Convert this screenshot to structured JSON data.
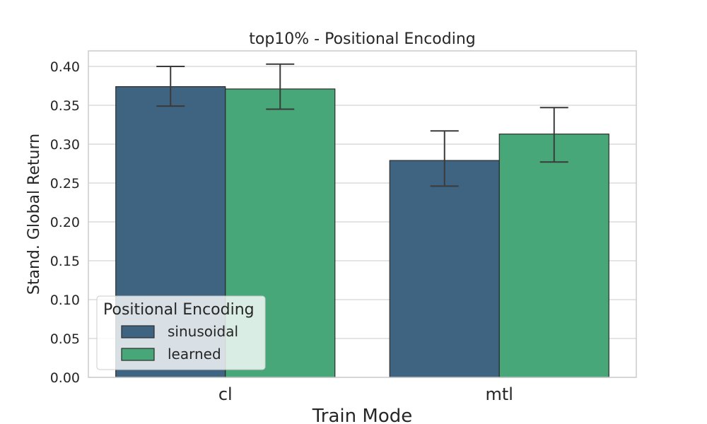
{
  "chart_data": {
    "type": "bar",
    "title": "top10% - Positional Encoding",
    "xlabel": "Train Mode",
    "ylabel": "Stand. Global Return",
    "categories": [
      "cl",
      "mtl"
    ],
    "ylim": [
      0,
      0.42
    ],
    "yticks": [
      0.0,
      0.05,
      0.1,
      0.15,
      0.2,
      0.25,
      0.3,
      0.35,
      0.4
    ],
    "ytick_labels": [
      "0.00",
      "0.05",
      "0.10",
      "0.15",
      "0.20",
      "0.25",
      "0.30",
      "0.35",
      "0.40"
    ],
    "grid": true,
    "legend": {
      "title": "Positional Encoding",
      "placement": "lower-left"
    },
    "series": [
      {
        "name": "sinusoidal",
        "color": "#3e6482",
        "values": [
          0.374,
          0.279
        ],
        "err_low": [
          0.349,
          0.246
        ],
        "err_high": [
          0.4,
          0.317
        ]
      },
      {
        "name": "learned",
        "color": "#47a778",
        "values": [
          0.371,
          0.313
        ],
        "err_low": [
          0.345,
          0.277
        ],
        "err_high": [
          0.403,
          0.347
        ]
      }
    ]
  }
}
